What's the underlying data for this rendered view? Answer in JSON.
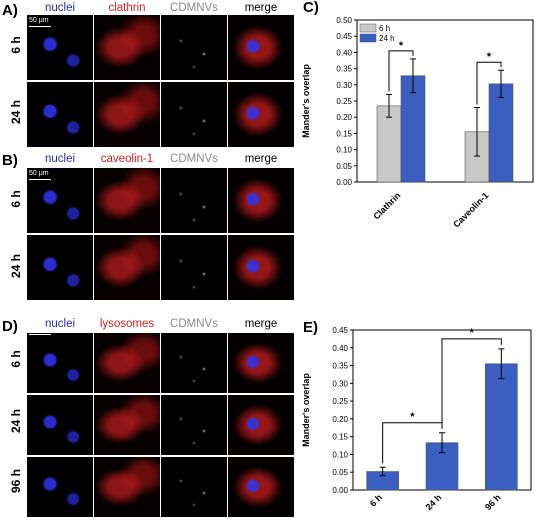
{
  "colors": {
    "nuclei": "#2a2aa8",
    "red": "#d42020",
    "gray": "#8a8a8a",
    "bar_gray": "#c8c8c8",
    "bar_blue": "#3a5fc0"
  },
  "panel_a": {
    "letter": "A)",
    "headers": [
      "nuclei",
      "clathrin",
      "CDMNVs",
      "merge"
    ],
    "rows": [
      "6 h",
      "24 h"
    ],
    "scale": "50 µm"
  },
  "panel_b": {
    "letter": "B)",
    "headers": [
      "nuclei",
      "caveolin-1",
      "CDMNVs",
      "merge"
    ],
    "rows": [
      "6 h",
      "24 h"
    ],
    "scale": "50 µm"
  },
  "panel_d": {
    "letter": "D)",
    "headers": [
      "nuclei",
      "lysosomes",
      "CDMNVs",
      "merge"
    ],
    "rows": [
      "6 h",
      "24 h",
      "96 h"
    ],
    "scale": "50 µm"
  },
  "chart_data": [
    {
      "panel": "C)",
      "type": "bar",
      "ylabel": "Mander's overlap",
      "ylim": [
        0,
        0.5
      ],
      "yticks": [
        "0.00",
        "0.05",
        "0.10",
        "0.15",
        "0.20",
        "0.25",
        "0.30",
        "0.35",
        "0.40",
        "0.45",
        "0.50"
      ],
      "categories": [
        "Clathrin",
        "Caveolin-1"
      ],
      "series": [
        {
          "name": "6 h",
          "color": "#c8c8c8",
          "values": [
            0.235,
            0.155
          ],
          "errors": [
            0.035,
            0.075
          ]
        },
        {
          "name": "24 h",
          "color": "#3a5fc0",
          "values": [
            0.328,
            0.303
          ],
          "errors": [
            0.052,
            0.042
          ]
        }
      ],
      "legend": "top-left",
      "sig": [
        "*",
        "*"
      ]
    },
    {
      "panel": "E)",
      "type": "bar",
      "ylabel": "Mander's overlap",
      "ylim": [
        0,
        0.45
      ],
      "yticks": [
        "0.00",
        "0.05",
        "0.10",
        "0.15",
        "0.20",
        "0.25",
        "0.30",
        "0.35",
        "0.40",
        "0.45"
      ],
      "categories": [
        "6 h",
        "24 h",
        "96 h"
      ],
      "series": [
        {
          "name": "",
          "color": "#3a5fc0",
          "values": [
            0.052,
            0.133,
            0.355
          ],
          "errors": [
            0.012,
            0.028,
            0.042
          ]
        }
      ],
      "sig": [
        "*",
        "*"
      ]
    }
  ]
}
